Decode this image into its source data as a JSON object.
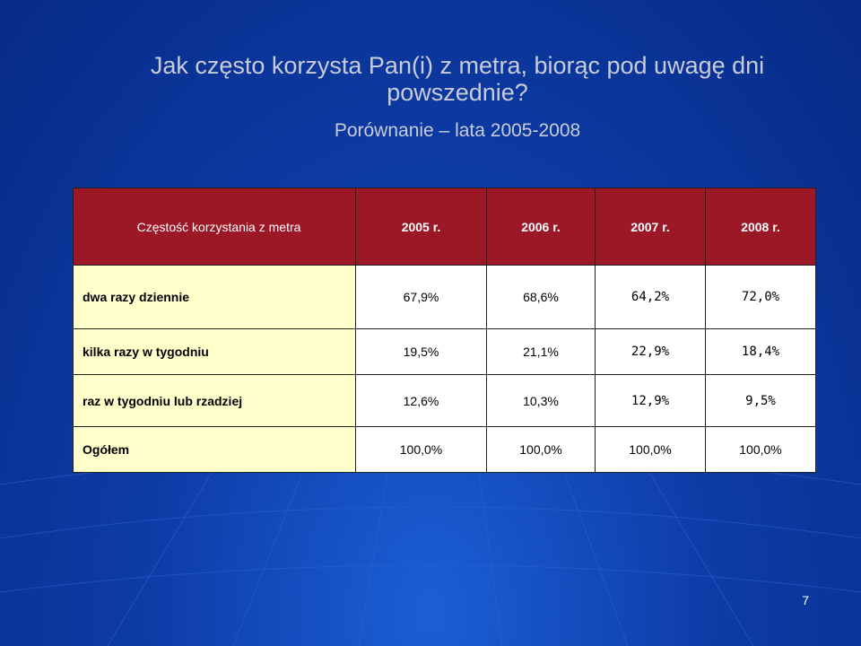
{
  "slide": {
    "title": "Jak często korzysta Pan(i) z metra, biorąc pod uwagę dni powszednie?",
    "subtitle": "Porównanie – lata 2005-2008",
    "page_number": "7"
  },
  "table": {
    "header": {
      "label": "Częstość korzystania z metra",
      "years": [
        "2005 r.",
        "2006 r.",
        "2007 r.",
        "2008 r."
      ]
    },
    "rows": [
      {
        "label": "dwa razy dziennie",
        "values": [
          "67,9%",
          "68,6%",
          "64,2%",
          "72,0%"
        ]
      },
      {
        "label": "kilka razy w tygodniu",
        "values": [
          "19,5%",
          "21,1%",
          "22,9%",
          "18,4%"
        ]
      },
      {
        "label": "raz w tygodniu lub rzadziej",
        "values": [
          "12,6%",
          "10,3%",
          "12,9%",
          "9,5%"
        ]
      },
      {
        "label": "Ogółem",
        "values": [
          "100,0%",
          "100,0%",
          "100,0%",
          "100,0%"
        ]
      }
    ]
  },
  "colors": {
    "header_bg": "#9c1826",
    "label_bg": "#ffffcc",
    "background": "#0e3da8"
  }
}
